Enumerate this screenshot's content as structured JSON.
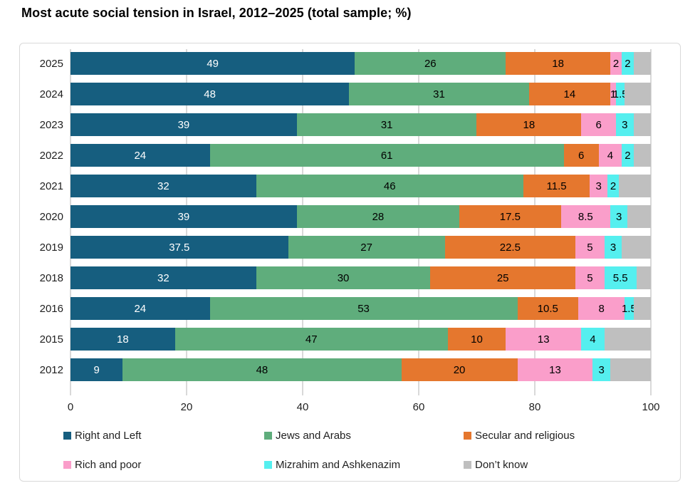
{
  "chart_data": {
    "type": "bar",
    "variant": "horizontal-stacked",
    "title": "Most acute social tension in Israel, 2012–2025 (total sample; %)",
    "categories": [
      "2025",
      "2024",
      "2023",
      "2022",
      "2021",
      "2020",
      "2019",
      "2018",
      "2016",
      "2015",
      "2012"
    ],
    "series": [
      {
        "name": "Right and Left",
        "color": "#165E7F",
        "label_color": "#FFFFFF",
        "data_labels": true,
        "values": [
          49,
          48,
          39,
          24,
          32,
          39,
          37.5,
          32,
          24,
          18,
          9
        ]
      },
      {
        "name": "Jews and Arabs",
        "color": "#5FAD7C",
        "label_color": "#000000",
        "data_labels": true,
        "values": [
          26,
          31,
          31,
          61,
          46,
          28,
          27,
          30,
          53,
          47,
          48
        ]
      },
      {
        "name": "Secular and religious",
        "color": "#E5772E",
        "label_color": "#000000",
        "data_labels": true,
        "values": [
          18,
          14,
          18,
          6,
          11.5,
          17.5,
          22.5,
          25,
          10.5,
          10,
          20
        ]
      },
      {
        "name": "Rich and poor",
        "color": "#FA9ECA",
        "label_color": "#000000",
        "data_labels": true,
        "values": [
          2,
          1,
          6,
          4,
          3,
          8.5,
          5,
          5,
          8,
          13,
          13
        ]
      },
      {
        "name": "Mizrahim and Ashkenazim",
        "color": "#55EFEF",
        "label_color": "#000000",
        "data_labels": true,
        "values": [
          2,
          1.5,
          3,
          2,
          2,
          3,
          3,
          5.5,
          1.5,
          4,
          3
        ]
      },
      {
        "name": "Don’t know",
        "color": "#BFBFBF",
        "label_color": "#000000",
        "data_labels": false,
        "values": [
          3,
          4.5,
          3,
          3,
          5.5,
          4,
          5,
          2.5,
          3,
          8,
          7
        ]
      }
    ],
    "xlim": [
      0,
      100
    ],
    "x_ticks": [
      0,
      20,
      40,
      60,
      80,
      100
    ],
    "grid": true,
    "gridline_color": "#D9D9D9",
    "legend_position": "bottom"
  }
}
